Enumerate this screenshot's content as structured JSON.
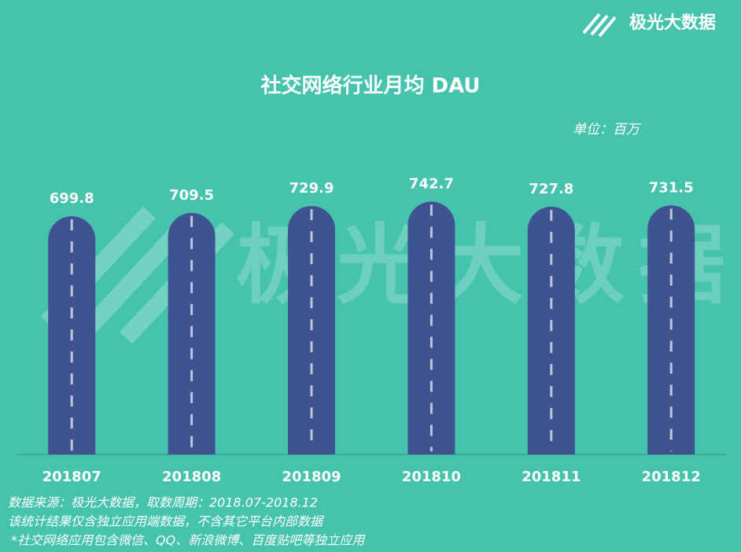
{
  "chart_data": {
    "type": "bar",
    "title": "社交网络行业月均 DAU",
    "unit_label": "单位：百万",
    "categories": [
      "201807",
      "201808",
      "201809",
      "201810",
      "201811",
      "201812"
    ],
    "values": [
      699.8,
      709.5,
      729.9,
      742.7,
      727.8,
      731.5
    ],
    "color": "#3f5390",
    "notes": [
      "数据来源：极光大数据，取数周期：2018.07-2018.12",
      "该统计结果仅含独立应用端数据，不含其它平台内部数据",
      "*社交网络应用包含微信、QQ、新浪微博、百度贴吧等独立应用"
    ]
  },
  "logo": "极光大数据",
  "watermark": "极光大数据"
}
